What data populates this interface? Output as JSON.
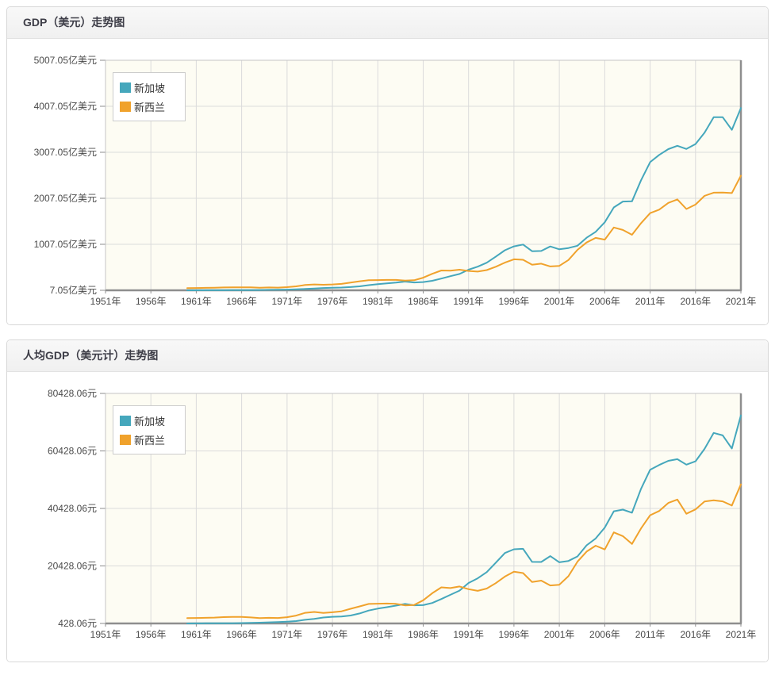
{
  "colors": {
    "singapore_line": "#45a7bc",
    "new_zealand_line": "#f0a22c",
    "plot_background": "#fdfcf3",
    "grid_line": "#dbdbdb",
    "plot_border_light": "#c5c5c5",
    "axis_line": "#8e8e8e",
    "axis_text": "#4a4a4a",
    "title_text": "#3e3e48",
    "legend_border": "#cccccc"
  },
  "chart_data": [
    {
      "type": "line",
      "title": "GDP（美元）走势图",
      "unit": "亿美元",
      "grid": true,
      "legend_position": "top-left",
      "xlim": [
        1951,
        2021
      ],
      "ylim": [
        7.05,
        5007.05
      ],
      "xticks": [
        {
          "year": 1951,
          "label": "1951年"
        },
        {
          "year": 1956,
          "label": "1956年"
        },
        {
          "year": 1961,
          "label": "1961年"
        },
        {
          "year": 1966,
          "label": "1966年"
        },
        {
          "year": 1971,
          "label": "1971年"
        },
        {
          "year": 1976,
          "label": "1976年"
        },
        {
          "year": 1981,
          "label": "1981年"
        },
        {
          "year": 1986,
          "label": "1986年"
        },
        {
          "year": 1991,
          "label": "1991年"
        },
        {
          "year": 1996,
          "label": "1996年"
        },
        {
          "year": 2001,
          "label": "2001年"
        },
        {
          "year": 2006,
          "label": "2006年"
        },
        {
          "year": 2011,
          "label": "2011年"
        },
        {
          "year": 2016,
          "label": "2016年"
        },
        {
          "year": 2021,
          "label": "2021年"
        }
      ],
      "yticks": [
        {
          "value": 7.05,
          "label": "7.05亿美元"
        },
        {
          "value": 1007.05,
          "label": "1007.05亿美元"
        },
        {
          "value": 2007.05,
          "label": "2007.05亿美元"
        },
        {
          "value": 3007.05,
          "label": "3007.05亿美元"
        },
        {
          "value": 4007.05,
          "label": "4007.05亿美元"
        },
        {
          "value": 5007.05,
          "label": "5007.05亿美元"
        }
      ],
      "series": [
        {
          "name": "新加坡",
          "color": "#45a7bc",
          "start_year": 1960,
          "values": [
            7.05,
            7.6,
            8.3,
            9.2,
            8.8,
            9.7,
            11.0,
            12.4,
            14.3,
            16.6,
            19.2,
            22.6,
            27.2,
            37.1,
            45.2,
            56.2,
            61.9,
            67.9,
            76.9,
            92.8,
            119.0,
            141.6,
            156.6,
            175.1,
            196.2,
            176.9,
            186.1,
            214.5,
            262.5,
            313.7,
            361.4,
            454.7,
            521.3,
            606.4,
            737.8,
            878.1,
            963.0,
            1001.6,
            857.1,
            862.8,
            960.7,
            897.9,
            925.4,
            976.4,
            1150.3,
            1278.1,
            1486.3,
            1809.4,
            1936.2,
            1941.5,
            2398.1,
            2793.5,
            2950.9,
            3075.8,
            3148.5,
            3080.0,
            3186.7,
            3432.6,
            3768.9,
            3769.0,
            3494.9,
            3969.9
          ]
        },
        {
          "name": "新西兰",
          "color": "#f0a22c",
          "start_year": 1960,
          "values": [
            54.9,
            56.7,
            59.9,
            63.4,
            68.8,
            72.3,
            73.4,
            70.2,
            64.4,
            68.3,
            66.3,
            75.3,
            93.4,
            123.4,
            135.4,
            127.0,
            135.2,
            146.4,
            175.4,
            203.3,
            225.3,
            230.0,
            233.0,
            233.4,
            219.2,
            225.3,
            281.3,
            366.5,
            438.4,
            432.7,
            455.4,
            428.1,
            413.2,
            446.3,
            519.2,
            609.0,
            681.1,
            671.6,
            561.9,
            585.9,
            526.2,
            538.7,
            665.8,
            885.7,
            1046.0,
            1146.6,
            1108.7,
            1373.1,
            1319.2,
            1213.1,
            1465.2,
            1683.9,
            1761.2,
            1906.3,
            1982.2,
            1774.9,
            1871.2,
            2060.9,
            2128.7,
            2132.4,
            2120.2,
            2497.6
          ]
        }
      ]
    },
    {
      "type": "line",
      "title": "人均GDP（美元计）走势图",
      "unit": "元",
      "grid": true,
      "legend_position": "top-left",
      "xlim": [
        1951,
        2021
      ],
      "ylim": [
        428.06,
        80428.06
      ],
      "xticks": [
        {
          "year": 1951,
          "label": "1951年"
        },
        {
          "year": 1956,
          "label": "1956年"
        },
        {
          "year": 1961,
          "label": "1961年"
        },
        {
          "year": 1966,
          "label": "1966年"
        },
        {
          "year": 1971,
          "label": "1971年"
        },
        {
          "year": 1976,
          "label": "1976年"
        },
        {
          "year": 1981,
          "label": "1981年"
        },
        {
          "year": 1986,
          "label": "1986年"
        },
        {
          "year": 1991,
          "label": "1991年"
        },
        {
          "year": 1996,
          "label": "1996年"
        },
        {
          "year": 2001,
          "label": "2001年"
        },
        {
          "year": 2006,
          "label": "2006年"
        },
        {
          "year": 2011,
          "label": "2011年"
        },
        {
          "year": 2016,
          "label": "2016年"
        },
        {
          "year": 2021,
          "label": "2021年"
        }
      ],
      "yticks": [
        {
          "value": 428.06,
          "label": "428.06元"
        },
        {
          "value": 20428.06,
          "label": "20428.06元"
        },
        {
          "value": 40428.06,
          "label": "40428.06元"
        },
        {
          "value": 60428.06,
          "label": "60428.06元"
        },
        {
          "value": 80428.06,
          "label": "80428.06元"
        }
      ],
      "series": [
        {
          "name": "新加坡",
          "color": "#45a7bc",
          "start_year": 1960,
          "values": [
            428,
            449,
            472,
            511,
            485,
            516,
            566,
            622,
            707,
            812,
            926,
            1071,
            1264,
            1685,
            2012,
            2490,
            2759,
            2847,
            3194,
            3901,
            4928,
            5597,
            6078,
            6633,
            7228,
            6754,
            6800,
            7539,
            8914,
            10395,
            11862,
            14502,
            16136,
            18290,
            21552,
            24914,
            26233,
            26376,
            21829,
            21797,
            23852,
            21700,
            22160,
            23730,
            27610,
            29961,
            33769,
            39432,
            40008,
            38927,
            47237,
            53890,
            55546,
            56967,
            57562,
            55646,
            56828,
            61150,
            66679,
            65831,
            61274,
            72794
          ]
        },
        {
          "name": "新西兰",
          "color": "#f0a22c",
          "start_year": 1960,
          "values": [
            2313,
            2343,
            2400,
            2483,
            2646,
            2721,
            2690,
            2533,
            2285,
            2395,
            2330,
            2608,
            3171,
            4124,
            4438,
            4108,
            4323,
            4651,
            5530,
            6358,
            7217,
            7305,
            7339,
            7248,
            6728,
            6845,
            8479,
            10944,
            12982,
            12740,
            13270,
            12348,
            11766,
            12556,
            14443,
            16724,
            18437,
            17933,
            14832,
            15324,
            13641,
            13883,
            16872,
            21914,
            25420,
            27467,
            26172,
            32104,
            30800,
            28059,
            33471,
            38066,
            39559,
            42326,
            43516,
            38566,
            40106,
            42849,
            43267,
            42888,
            41441,
            48781
          ]
        }
      ]
    }
  ]
}
